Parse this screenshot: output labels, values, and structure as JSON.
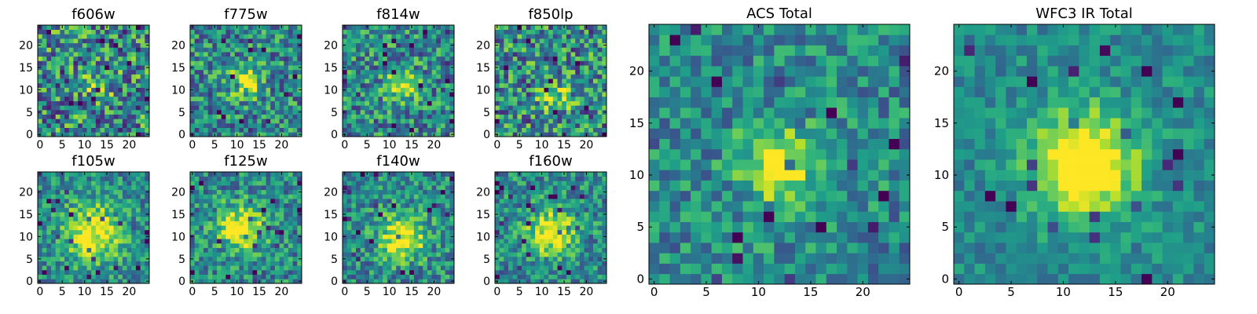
{
  "chart_data": {
    "type": "heatmap",
    "colormap": "viridis",
    "panels": [
      {
        "title": "f606w",
        "xticks": [
          0,
          5,
          10,
          15,
          20
        ],
        "yticks": [
          0,
          5,
          10,
          15,
          20
        ],
        "xlim": [
          -0.5,
          24.5
        ],
        "ylim": [
          -0.5,
          24.5
        ],
        "peak": [
          13,
          11
        ],
        "signal": 0.25,
        "sigma": 2.5,
        "noise": 0.75,
        "seed": 11
      },
      {
        "title": "f775w",
        "xticks": [
          0,
          5,
          10,
          15,
          20
        ],
        "yticks": [
          0,
          5,
          10,
          15,
          20
        ],
        "xlim": [
          -0.5,
          24.5
        ],
        "ylim": [
          -0.5,
          24.5
        ],
        "peak": [
          12,
          12
        ],
        "signal": 0.45,
        "sigma": 2.5,
        "noise": 0.6,
        "seed": 23
      },
      {
        "title": "f814w",
        "xticks": [
          0,
          5,
          10,
          15,
          20
        ],
        "yticks": [
          0,
          5,
          10,
          15,
          20
        ],
        "xlim": [
          -0.5,
          24.5
        ],
        "ylim": [
          -0.5,
          24.5
        ],
        "peak": [
          13,
          11
        ],
        "signal": 0.45,
        "sigma": 2.5,
        "noise": 0.6,
        "seed": 37
      },
      {
        "title": "f850lp",
        "xticks": [
          0,
          5,
          10,
          15,
          20
        ],
        "yticks": [
          0,
          5,
          10,
          15,
          20
        ],
        "xlim": [
          -0.5,
          24.5
        ],
        "ylim": [
          -0.5,
          24.5
        ],
        "peak": [
          13,
          8
        ],
        "signal": 0.3,
        "sigma": 2.5,
        "noise": 0.7,
        "seed": 41
      },
      {
        "title": "f105w",
        "xticks": [
          0,
          5,
          10,
          15,
          20
        ],
        "yticks": [
          0,
          5,
          10,
          15,
          20
        ],
        "xlim": [
          -0.5,
          24.5
        ],
        "ylim": [
          -0.5,
          24.5
        ],
        "peak": [
          12,
          11
        ],
        "signal": 0.55,
        "sigma": 4.5,
        "noise": 0.45,
        "seed": 53
      },
      {
        "title": "f125w",
        "xticks": [
          0,
          5,
          10,
          15,
          20
        ],
        "yticks": [
          0,
          5,
          10,
          15,
          20
        ],
        "xlim": [
          -0.5,
          24.5
        ],
        "ylim": [
          -0.5,
          24.5
        ],
        "peak": [
          11,
          12
        ],
        "signal": 0.55,
        "sigma": 3.5,
        "noise": 0.5,
        "seed": 67
      },
      {
        "title": "f140w",
        "xticks": [
          0,
          5,
          10,
          15,
          20
        ],
        "yticks": [
          0,
          5,
          10,
          15,
          20
        ],
        "xlim": [
          -0.5,
          24.5
        ],
        "ylim": [
          -0.5,
          24.5
        ],
        "peak": [
          13,
          10
        ],
        "signal": 0.55,
        "sigma": 3.5,
        "noise": 0.5,
        "seed": 79
      },
      {
        "title": "f160w",
        "xticks": [
          0,
          5,
          10,
          15,
          20
        ],
        "yticks": [
          0,
          5,
          10,
          15,
          20
        ],
        "xlim": [
          -0.5,
          24.5
        ],
        "ylim": [
          -0.5,
          24.5
        ],
        "peak": [
          12,
          11
        ],
        "signal": 0.55,
        "sigma": 3.5,
        "noise": 0.5,
        "seed": 83
      },
      {
        "title": "ACS Total",
        "xticks": [
          0,
          5,
          10,
          15,
          20
        ],
        "yticks": [
          0,
          5,
          10,
          15,
          20
        ],
        "xlim": [
          -0.5,
          24.5
        ],
        "ylim": [
          -0.5,
          24.5
        ],
        "peak": [
          12,
          11
        ],
        "signal": 0.55,
        "sigma": 2.5,
        "noise": 0.45,
        "seed": 97
      },
      {
        "title": "WFC3 IR Total",
        "xticks": [
          0,
          5,
          10,
          15,
          20
        ],
        "yticks": [
          0,
          5,
          10,
          15,
          20
        ],
        "xlim": [
          -0.5,
          24.5
        ],
        "ylim": [
          -0.5,
          24.5
        ],
        "peak": [
          12,
          11
        ],
        "signal": 0.7,
        "sigma": 3.5,
        "noise": 0.3,
        "seed": 101
      }
    ]
  }
}
